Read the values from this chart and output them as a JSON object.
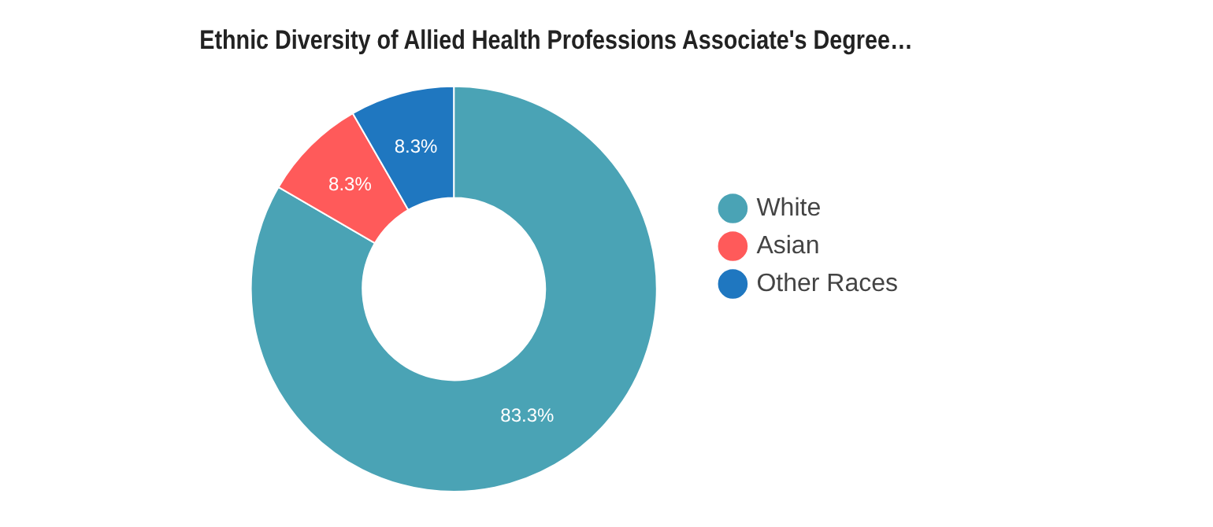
{
  "chart_data": {
    "type": "donut",
    "title": "Ethnic Diversity of Allied Health Professions Associate's Degree…",
    "categories": [
      "White",
      "Asian",
      "Other Races"
    ],
    "values": [
      83.3,
      8.3,
      8.3
    ],
    "value_labels": [
      "83.3%",
      "8.3%",
      "8.3%"
    ],
    "colors": [
      "#4aa3b5",
      "#ff5a5a",
      "#1f77c0"
    ],
    "legend": "right"
  }
}
